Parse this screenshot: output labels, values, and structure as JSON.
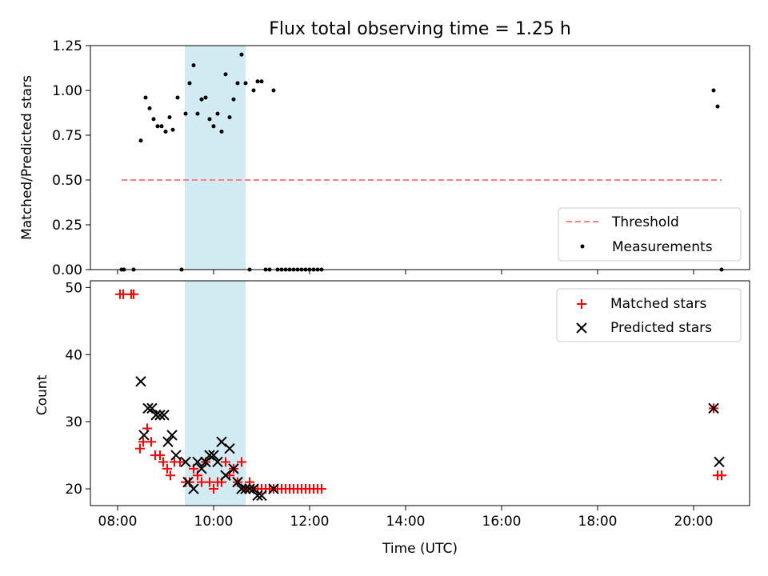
{
  "chart_data": [
    {
      "type": "scatter",
      "title": "Flux total observing time = 1.25 h",
      "xlabel": "",
      "ylabel": "Matched/Predicted stars",
      "xlim": [
        "07:26",
        "21:10"
      ],
      "ylim": [
        0,
        1.25
      ],
      "yticks": [
        "0.00",
        "0.25",
        "0.50",
        "0.75",
        "1.00",
        "1.25"
      ],
      "shaded_region": [
        "09:24",
        "10:40"
      ],
      "legend_position": "lower right",
      "threshold": {
        "name": "Threshold",
        "value": 0.5,
        "x_range": [
          "08:05",
          "20:35"
        ],
        "color": "#ff7f7f"
      },
      "series": [
        {
          "name": "Measurements",
          "color": "#000000",
          "points": [
            [
              "08:05",
              0.0
            ],
            [
              "08:08",
              0.0
            ],
            [
              "08:20",
              0.0
            ],
            [
              "08:29",
              0.72
            ],
            [
              "08:35",
              0.96
            ],
            [
              "08:40",
              0.9
            ],
            [
              "08:45",
              0.84
            ],
            [
              "08:50",
              0.8
            ],
            [
              "08:55",
              0.8
            ],
            [
              "09:00",
              0.77
            ],
            [
              "09:05",
              0.85
            ],
            [
              "09:09",
              0.78
            ],
            [
              "09:15",
              0.96
            ],
            [
              "09:20",
              0.0
            ],
            [
              "09:25",
              0.87
            ],
            [
              "09:30",
              1.04
            ],
            [
              "09:35",
              1.14
            ],
            [
              "09:40",
              0.87
            ],
            [
              "09:45",
              0.95
            ],
            [
              "09:50",
              0.96
            ],
            [
              "09:55",
              0.84
            ],
            [
              "10:00",
              0.8
            ],
            [
              "10:05",
              0.87
            ],
            [
              "10:10",
              0.77
            ],
            [
              "10:15",
              1.09
            ],
            [
              "10:20",
              0.85
            ],
            [
              "10:25",
              0.95
            ],
            [
              "10:30",
              1.04
            ],
            [
              "10:35",
              1.2
            ],
            [
              "10:40",
              1.04
            ],
            [
              "10:45",
              0.0
            ],
            [
              "10:50",
              1.0
            ],
            [
              "10:55",
              1.05
            ],
            [
              "11:00",
              1.05
            ],
            [
              "11:05",
              0.0
            ],
            [
              "11:10",
              0.0
            ],
            [
              "11:15",
              1.0
            ],
            [
              "11:20",
              0.0
            ],
            [
              "11:25",
              0.0
            ],
            [
              "11:30",
              0.0
            ],
            [
              "11:35",
              0.0
            ],
            [
              "11:40",
              0.0
            ],
            [
              "11:45",
              0.0
            ],
            [
              "11:50",
              0.0
            ],
            [
              "11:55",
              0.0
            ],
            [
              "12:00",
              0.0
            ],
            [
              "12:05",
              0.0
            ],
            [
              "12:10",
              0.0
            ],
            [
              "12:15",
              0.0
            ],
            [
              "20:25",
              1.0
            ],
            [
              "20:30",
              0.91
            ],
            [
              "20:35",
              0.0
            ]
          ]
        }
      ]
    },
    {
      "type": "scatter",
      "title": "",
      "xlabel": "Time (UTC)",
      "ylabel": "Count",
      "xlim": [
        "07:26",
        "21:10"
      ],
      "ylim": [
        17.5,
        51
      ],
      "xticks": [
        "08:00",
        "10:00",
        "12:00",
        "14:00",
        "16:00",
        "18:00",
        "20:00"
      ],
      "yticks": [
        "20",
        "30",
        "40",
        "50"
      ],
      "shaded_region": [
        "09:24",
        "10:40"
      ],
      "legend_position": "upper right",
      "series": [
        {
          "name": "Matched stars",
          "marker": "+",
          "color": "#ff0000",
          "points": [
            [
              "08:03",
              49
            ],
            [
              "08:07",
              49
            ],
            [
              "08:17",
              49
            ],
            [
              "08:20",
              49
            ],
            [
              "08:28",
              26
            ],
            [
              "08:32",
              27
            ],
            [
              "08:37",
              29
            ],
            [
              "08:42",
              27
            ],
            [
              "08:47",
              25
            ],
            [
              "08:53",
              25
            ],
            [
              "08:57",
              24
            ],
            [
              "09:02",
              23
            ],
            [
              "09:06",
              22
            ],
            [
              "09:11",
              24
            ],
            [
              "09:18",
              24
            ],
            [
              "09:25",
              21
            ],
            [
              "09:30",
              21
            ],
            [
              "09:35",
              23
            ],
            [
              "09:40",
              22
            ],
            [
              "09:45",
              21
            ],
            [
              "09:50",
              24
            ],
            [
              "09:55",
              21
            ],
            [
              "10:00",
              20
            ],
            [
              "10:05",
              21
            ],
            [
              "10:10",
              21
            ],
            [
              "10:15",
              24
            ],
            [
              "10:20",
              22
            ],
            [
              "10:25",
              23
            ],
            [
              "10:30",
              21
            ],
            [
              "10:35",
              24
            ],
            [
              "10:40",
              20
            ],
            [
              "10:45",
              21
            ],
            [
              "10:50",
              20
            ],
            [
              "10:55",
              20
            ],
            [
              "11:00",
              20
            ],
            [
              "11:05",
              20
            ],
            [
              "11:10",
              20
            ],
            [
              "11:15",
              20
            ],
            [
              "11:20",
              20
            ],
            [
              "11:25",
              20
            ],
            [
              "11:30",
              20
            ],
            [
              "11:35",
              20
            ],
            [
              "11:40",
              20
            ],
            [
              "11:45",
              20
            ],
            [
              "11:50",
              20
            ],
            [
              "11:55",
              20
            ],
            [
              "12:00",
              20
            ],
            [
              "12:05",
              20
            ],
            [
              "12:10",
              20
            ],
            [
              "12:15",
              20
            ],
            [
              "20:25",
              32
            ],
            [
              "20:30",
              22
            ],
            [
              "20:35",
              22
            ]
          ]
        },
        {
          "name": "Predicted stars",
          "marker": "x",
          "color": "#000000",
          "points": [
            [
              "08:29",
              36
            ],
            [
              "08:33",
              28
            ],
            [
              "08:38",
              32
            ],
            [
              "08:43",
              32
            ],
            [
              "08:48",
              31
            ],
            [
              "08:53",
              31
            ],
            [
              "08:58",
              31
            ],
            [
              "09:03",
              27
            ],
            [
              "09:08",
              28
            ],
            [
              "09:13",
              25
            ],
            [
              "09:25",
              24
            ],
            [
              "09:28",
              21
            ],
            [
              "09:35",
              20
            ],
            [
              "09:40",
              24
            ],
            [
              "09:45",
              23
            ],
            [
              "09:50",
              24
            ],
            [
              "09:55",
              25
            ],
            [
              "10:00",
              25
            ],
            [
              "10:05",
              24
            ],
            [
              "10:10",
              27
            ],
            [
              "10:15",
              22
            ],
            [
              "10:20",
              26
            ],
            [
              "10:25",
              23
            ],
            [
              "10:30",
              21
            ],
            [
              "10:35",
              20
            ],
            [
              "10:40",
              20
            ],
            [
              "10:45",
              20
            ],
            [
              "10:50",
              20
            ],
            [
              "10:55",
              19
            ],
            [
              "11:00",
              19
            ],
            [
              "11:15",
              20
            ],
            [
              "20:25",
              32
            ],
            [
              "20:32",
              24
            ]
          ]
        }
      ]
    }
  ]
}
